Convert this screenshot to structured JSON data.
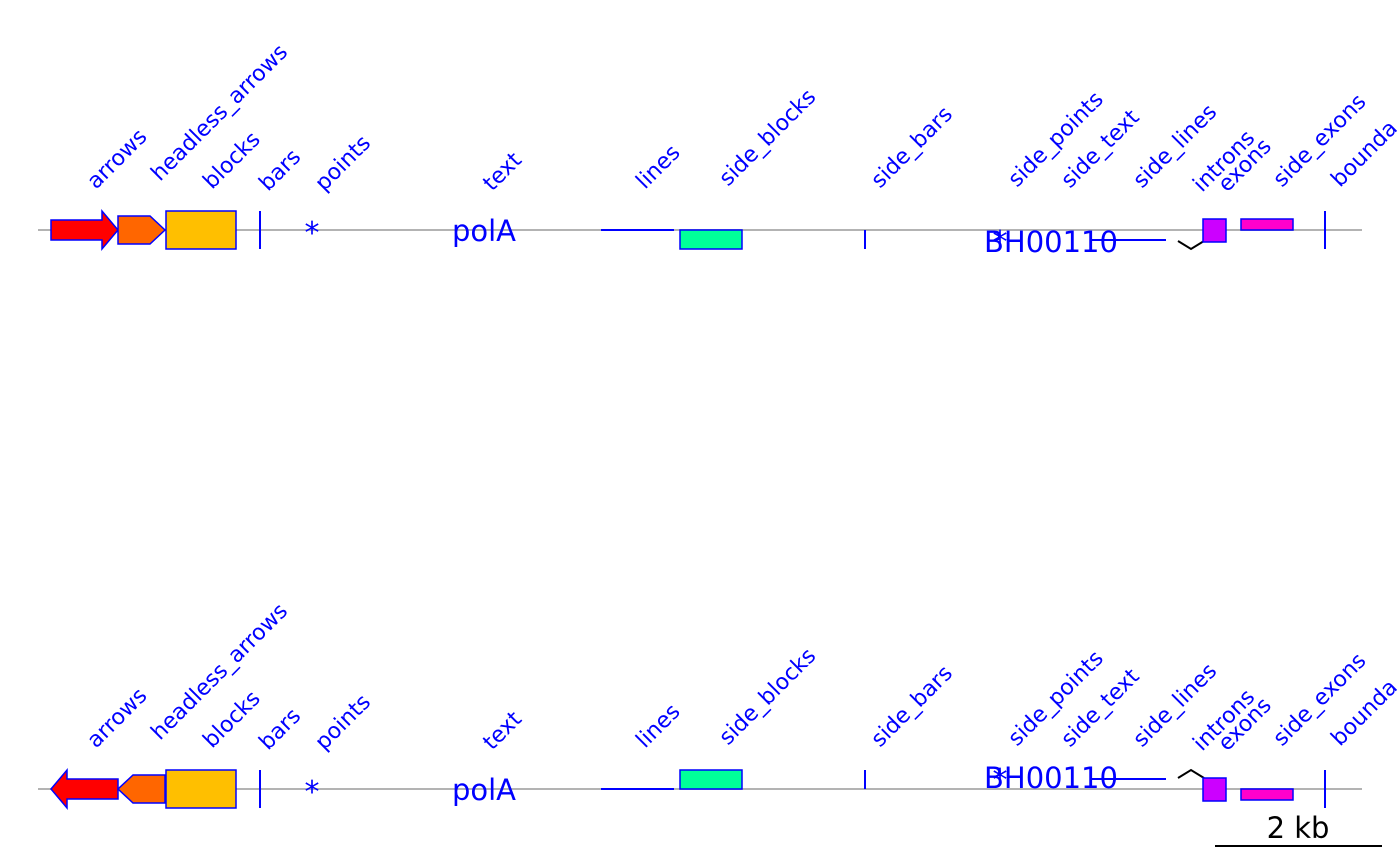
{
  "colors": {
    "backbone": "#b3b3b3",
    "outline": "#0000ff",
    "label": "#0000ff",
    "arrows": "#ff0000",
    "headless_arrows": "#ff6600",
    "blocks": "#ffbf00",
    "side_blocks": "#00ff99",
    "exons": "#cc00ff",
    "side_exons": "#ff00cc",
    "intron_line": "#000000",
    "scale": "#000000"
  },
  "feature_labels": {
    "arrows": "arrows",
    "headless_arrows": "headless_arrows",
    "blocks": "blocks",
    "bars": "bars",
    "points": "points",
    "text": "text",
    "lines": "lines",
    "side_blocks": "side_blocks",
    "side_bars": "side_bars",
    "side_points": "side_points",
    "side_text": "side_text",
    "side_lines": "side_lines",
    "introns": "introns",
    "exons": "exons",
    "side_exons": "side_exons",
    "boundaries": "bounda"
  },
  "feature_texts": {
    "text": "polA",
    "side_text": "BH00110",
    "points_symbol": "*",
    "side_points_symbol": "*"
  },
  "scale_bar": {
    "label": "2 kb",
    "length_kb": 2
  },
  "sequences": [
    {
      "strand": "forward"
    },
    {
      "strand": "reverse"
    }
  ]
}
